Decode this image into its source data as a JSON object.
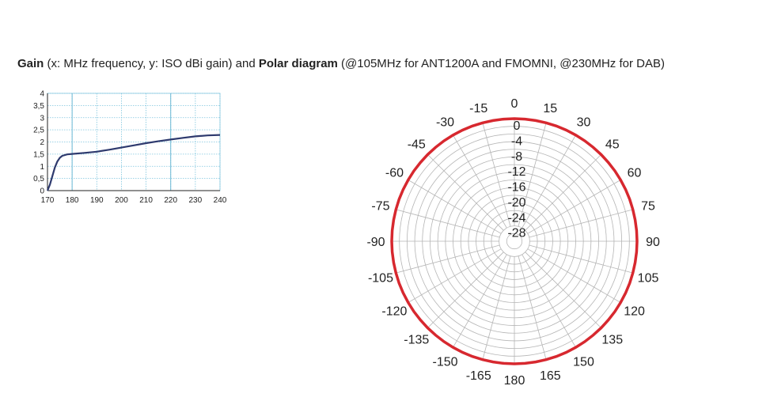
{
  "heading": {
    "gain_bold": "Gain",
    "gain_rest": " (x: MHz frequency, y: ISO dBi gain) and ",
    "polar_bold": "Polar diagram",
    "polar_rest": " (@105MHz for ANT1200A and FMOMNI, @230MHz for DAB)"
  },
  "chart_data": [
    {
      "type": "line",
      "xlim": [
        170,
        240
      ],
      "ylim": [
        0,
        4
      ],
      "x_ticks": [
        "170",
        "180",
        "190",
        "200",
        "210",
        "220",
        "230",
        "240"
      ],
      "y_ticks": [
        "0",
        "0,5",
        "1",
        "1,5",
        "2",
        "2,5",
        "3",
        "3,5",
        "4"
      ],
      "grid": true,
      "line_color": "#2e3a6e",
      "series": [
        {
          "x": [
            170,
            171,
            172,
            173,
            174,
            175,
            176,
            178,
            180,
            185,
            190,
            195,
            200,
            205,
            210,
            215,
            220,
            225,
            230,
            235,
            240
          ],
          "y": [
            0.0,
            0.25,
            0.6,
            0.95,
            1.2,
            1.35,
            1.43,
            1.49,
            1.51,
            1.55,
            1.6,
            1.68,
            1.77,
            1.86,
            1.95,
            2.03,
            2.1,
            2.17,
            2.23,
            2.27,
            2.29
          ]
        }
      ]
    },
    {
      "type": "polar",
      "angle_ticks": [
        "0",
        "15",
        "30",
        "45",
        "60",
        "75",
        "90",
        "105",
        "120",
        "135",
        "150",
        "165",
        "180",
        "-165",
        "-150",
        "-135",
        "-120",
        "-105",
        "-90",
        "-75",
        "-60",
        "-45",
        "-30",
        "-15"
      ],
      "radial_ticks": [
        "0",
        "-4",
        "-8",
        "-12",
        "-16",
        "-20",
        "-24",
        "-28"
      ],
      "rlim": [
        -32,
        0
      ],
      "grid": true,
      "pattern_color": "#d7282f",
      "series": [
        {
          "angles_deg": [
            0,
            90,
            180,
            270
          ],
          "gain_db": [
            0,
            0,
            0,
            0
          ]
        }
      ]
    }
  ]
}
